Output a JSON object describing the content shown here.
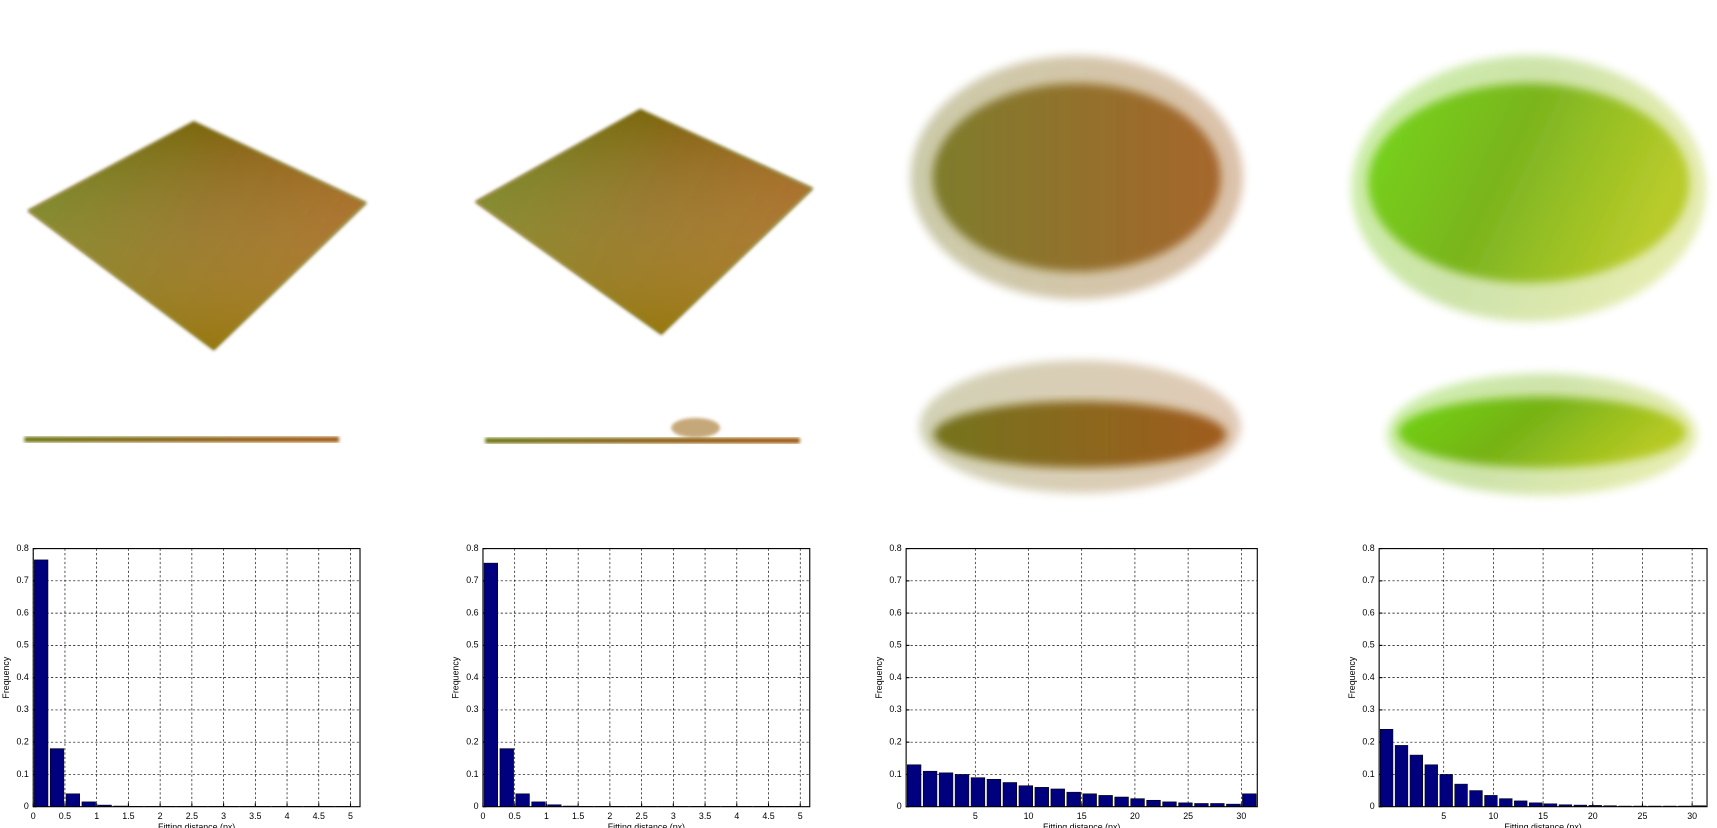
{
  "chart_data": [
    {
      "type": "histogram",
      "color": "#00007f",
      "xlabel": "Fitting distance (px)",
      "ylabel": "Frequency",
      "grid": true,
      "bins": [
        0,
        0.25,
        0.5,
        0.75,
        1,
        1.25,
        1.5,
        1.75,
        2,
        2.25,
        2.5,
        2.75,
        3,
        3.25,
        3.5,
        3.75,
        4,
        4.25,
        4.5,
        4.75,
        5
      ],
      "values": [
        0.765,
        0.18,
        0.04,
        0.015,
        0.005,
        0.002,
        0.001,
        0.001,
        0.001,
        0.001,
        0.001,
        0.001,
        0.001,
        0.001,
        0.001,
        0.001,
        0.001,
        0.001,
        0.001,
        0.001
      ],
      "xlim": [
        0,
        5.15
      ],
      "xticks": [
        0,
        0.5,
        1,
        1.5,
        2,
        2.5,
        3,
        3.5,
        4,
        4.5,
        5
      ],
      "ylim": [
        0,
        0.8
      ],
      "yticks": [
        0,
        0.1,
        0.2,
        0.3,
        0.4,
        0.5,
        0.6,
        0.7,
        0.8
      ]
    },
    {
      "type": "histogram",
      "color": "#00007f",
      "xlabel": "Fitting distance (px)",
      "ylabel": "Frequency",
      "grid": true,
      "bins": [
        0,
        0.25,
        0.5,
        0.75,
        1,
        1.25,
        1.5,
        1.75,
        2,
        2.25,
        2.5,
        2.75,
        3,
        3.25,
        3.5,
        3.75,
        4,
        4.25,
        4.5,
        4.75,
        5
      ],
      "values": [
        0.755,
        0.18,
        0.04,
        0.015,
        0.006,
        0.002,
        0.001,
        0.001,
        0.001,
        0.001,
        0.001,
        0.001,
        0.001,
        0.001,
        0.001,
        0.001,
        0.001,
        0.001,
        0.001,
        0.001
      ],
      "xlim": [
        0,
        5.15
      ],
      "xticks": [
        0,
        0.5,
        1,
        1.5,
        2,
        2.5,
        3,
        3.5,
        4,
        4.5,
        5
      ],
      "ylim": [
        0,
        0.8
      ],
      "yticks": [
        0,
        0.1,
        0.2,
        0.3,
        0.4,
        0.5,
        0.6,
        0.7,
        0.8
      ]
    },
    {
      "type": "histogram",
      "color": "#00007f",
      "xlabel": "Fitting distance (px)",
      "ylabel": "Frequency",
      "grid": true,
      "bins": [
        -1.5,
        0,
        1.5,
        3,
        4.5,
        6,
        7.5,
        9,
        10.5,
        12,
        13.5,
        15,
        16.5,
        18,
        19.5,
        21,
        22.5,
        24,
        25.5,
        27,
        28.5,
        30,
        31.5
      ],
      "values": [
        0.13,
        0.11,
        0.105,
        0.1,
        0.09,
        0.085,
        0.075,
        0.065,
        0.06,
        0.055,
        0.045,
        0.04,
        0.035,
        0.03,
        0.025,
        0.02,
        0.015,
        0.012,
        0.01,
        0.01,
        0.008,
        0.04
      ],
      "xlim": [
        -1.5,
        31.5
      ],
      "xticks": [
        5,
        10,
        15,
        20,
        25,
        30
      ],
      "ylim": [
        0,
        0.8
      ],
      "yticks": [
        0,
        0.1,
        0.2,
        0.3,
        0.4,
        0.5,
        0.6,
        0.7,
        0.8
      ]
    },
    {
      "type": "histogram",
      "color": "#00007f",
      "xlabel": "Fitting distance (px)",
      "ylabel": "Frequency",
      "grid": true,
      "bins": [
        -1.5,
        0,
        1.5,
        3,
        4.5,
        6,
        7.5,
        9,
        10.5,
        12,
        13.5,
        15,
        16.5,
        18,
        19.5,
        21,
        22.5,
        24,
        25.5,
        27,
        28.5,
        30,
        31.5
      ],
      "values": [
        0.24,
        0.19,
        0.16,
        0.13,
        0.1,
        0.07,
        0.05,
        0.035,
        0.025,
        0.018,
        0.012,
        0.009,
        0.006,
        0.005,
        0.004,
        0.003,
        0.002,
        0.002,
        0.002,
        0.002,
        0.002,
        0.003
      ],
      "xlim": [
        -1.5,
        31.5
      ],
      "xticks": [
        5,
        10,
        15,
        20,
        25,
        30
      ],
      "ylim": [
        0,
        0.8
      ],
      "yticks": [
        0,
        0.1,
        0.2,
        0.3,
        0.4,
        0.5,
        0.6,
        0.7,
        0.8
      ]
    }
  ]
}
